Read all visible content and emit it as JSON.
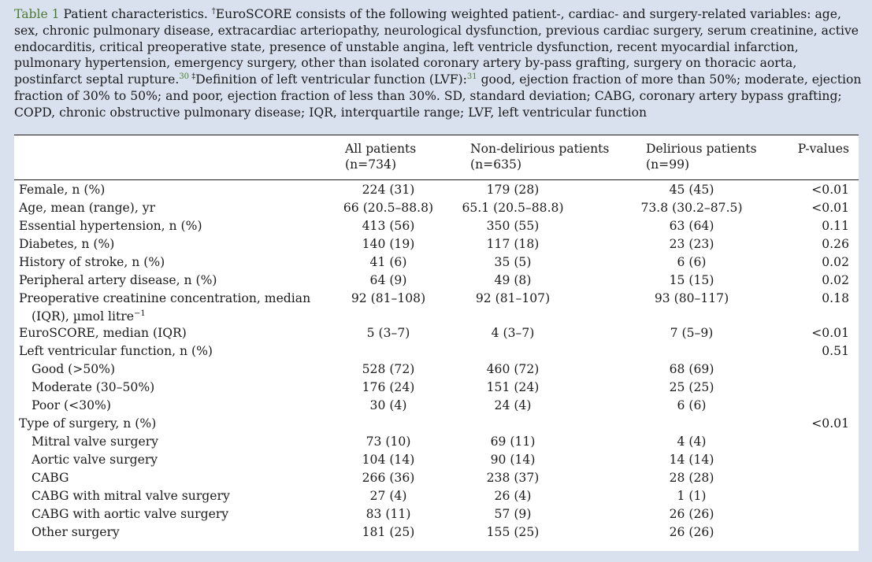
{
  "caption": {
    "label": "Table 1",
    "part1": " Patient characteristics. ",
    "dagger": "†",
    "part2": "EuroSCORE consists of the following weighted patient-, cardiac- and surgery-related variables: age, sex, chronic pulmonary disease, extracardiac arteriopathy, neurological dysfunction, previous cardiac surgery, serum creatinine, active endocarditis, critical preoperative state, presence of unstable angina, left ventricle dysfunction, recent myocardial infarction, pulmonary hypertension, emergency surgery, other than isolated coronary artery by-pass grafting, surgery on thoracic aorta, postinfarct septal rupture.",
    "ref1": "30",
    "ddagger": " ‡",
    "part3": "Definition of left ventricular function (LVF):",
    "ref2": "31",
    "part4": " good, ejection fraction of more than 50%; moderate, ejection fraction of 30% to 50%; and poor, ejection fraction of less than 30%. SD, standard deviation; CABG, coronary artery bypass grafting; COPD, chronic obstructive pulmonary disease; IQR, interquartile range; LVF, left ventricular function"
  },
  "columns": [
    {
      "title": "All patients",
      "n": "(n=734)"
    },
    {
      "title": "Non-delirious patients",
      "n": "(n=635)"
    },
    {
      "title": "Delirious patients",
      "n": "(n=99)"
    },
    {
      "title": "P-values",
      "n": ""
    }
  ],
  "rows": [
    {
      "label": "Female, n (%)",
      "all": "224 (31)",
      "non": "179 (28)",
      "del": "45 (45)",
      "p": "<0.01"
    },
    {
      "label": "Age, mean (range), yr",
      "all": "66 (20.5–88.8)",
      "non": "65.1 (20.5–88.8)",
      "del": "73.8 (30.2–87.5)",
      "p": "<0.01"
    },
    {
      "label": "Essential hypertension, n (%)",
      "all": "413 (56)",
      "non": "350 (55)",
      "del": "63 (64)",
      "p": "0.11"
    },
    {
      "label": "Diabetes, n (%)",
      "all": "140 (19)",
      "non": "117 (18)",
      "del": "23 (23)",
      "p": "0.26"
    },
    {
      "label": "History of stroke, n (%)",
      "all": "41 (6)",
      "non": "35 (5)",
      "del": "6 (6)",
      "p": "0.02"
    },
    {
      "label": "Peripheral artery disease, n (%)",
      "all": "64 (9)",
      "non": "49 (8)",
      "del": "15 (15)",
      "p": "0.02"
    },
    {
      "label": "Preoperative creatinine concentration, median",
      "label2": "(IQR), µmol litre",
      "label2sup": "−1",
      "all": "92 (81–108)",
      "non": "92 (81–107)",
      "del": "93 (80–117)",
      "p": "0.18"
    },
    {
      "label": "EuroSCORE, median (IQR)",
      "all": "5 (3–7)",
      "non": "4 (3–7)",
      "del": "7 (5–9)",
      "p": "<0.01"
    },
    {
      "label": "Left ventricular function, n (%)",
      "all": "",
      "non": "",
      "del": "",
      "p": "0.51"
    },
    {
      "label": "Good (>50%)",
      "indent": true,
      "all": "528 (72)",
      "non": "460 (72)",
      "del": "68 (69)",
      "p": ""
    },
    {
      "label": "Moderate (30–50%)",
      "indent": true,
      "all": "176 (24)",
      "non": "151 (24)",
      "del": "25 (25)",
      "p": ""
    },
    {
      "label": "Poor (<30%)",
      "indent": true,
      "all": "30 (4)",
      "non": "24 (4)",
      "del": "6 (6)",
      "p": ""
    },
    {
      "label": "Type of surgery, n (%)",
      "all": "",
      "non": "",
      "del": "",
      "p": "<0.01"
    },
    {
      "label": "Mitral valve surgery",
      "indent": true,
      "all": "73 (10)",
      "non": "69 (11)",
      "del": "4 (4)",
      "p": ""
    },
    {
      "label": "Aortic valve surgery",
      "indent": true,
      "all": "104 (14)",
      "non": "90 (14)",
      "del": "14 (14)",
      "p": ""
    },
    {
      "label": "CABG",
      "indent": true,
      "all": "266 (36)",
      "non": "238 (37)",
      "del": "28 (28)",
      "p": ""
    },
    {
      "label": "CABG with mitral valve surgery",
      "indent": true,
      "all": "27 (4)",
      "non": "26 (4)",
      "del": "1 (1)",
      "p": ""
    },
    {
      "label": "CABG with aortic valve surgery",
      "indent": true,
      "all": "83 (11)",
      "non": "57 (9)",
      "del": "26 (26)",
      "p": ""
    },
    {
      "label": "Other surgery",
      "indent": true,
      "all": "181 (25)",
      "non": "155 (25)",
      "del": "26 (26)",
      "p": ""
    }
  ]
}
